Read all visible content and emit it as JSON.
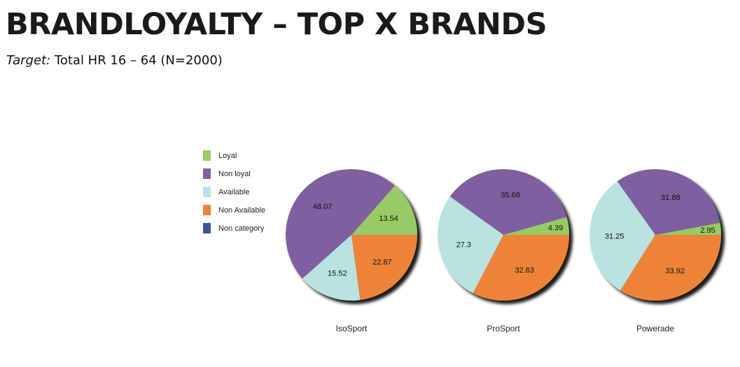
{
  "header": {
    "title": "BRANDLOYALTY – TOP X BRANDS",
    "target_label": "Target:",
    "target_value": "Total HR 16 – 64 (N=2000)"
  },
  "legend": {
    "items": [
      {
        "label": "Loyal",
        "color": "#98CB63"
      },
      {
        "label": "Non loyal",
        "color": "#7F5FA0"
      },
      {
        "label": "Available",
        "color": "#B9E3E1"
      },
      {
        "label": "Non Available",
        "color": "#EC8339"
      },
      {
        "label": "Non category",
        "color": "#3F5597"
      }
    ]
  },
  "chart_data": [
    {
      "type": "pie",
      "title": "IsoSport",
      "categories": [
        "Loyal",
        "Non loyal",
        "Available",
        "Non Available",
        "Non category"
      ],
      "values": [
        13.54,
        48.07,
        15.52,
        22.87,
        0
      ],
      "labels": [
        "13.54",
        "48.07",
        "15.52",
        "22.87",
        ""
      ]
    },
    {
      "type": "pie",
      "title": "ProSport",
      "categories": [
        "Loyal",
        "Non loyal",
        "Available",
        "Non Available",
        "Non category"
      ],
      "values": [
        4.39,
        35.68,
        27.3,
        32.63,
        0
      ],
      "labels": [
        "4.39",
        "35.68",
        "27.3",
        "32.63",
        ""
      ]
    },
    {
      "type": "pie",
      "title": "Powerade",
      "categories": [
        "Loyal",
        "Non loyal",
        "Available",
        "Non Available",
        "Non category"
      ],
      "values": [
        2.95,
        31.88,
        31.25,
        33.92,
        0
      ],
      "labels": [
        "2.95",
        "31.88",
        "31.25",
        "33.92",
        ""
      ]
    }
  ]
}
